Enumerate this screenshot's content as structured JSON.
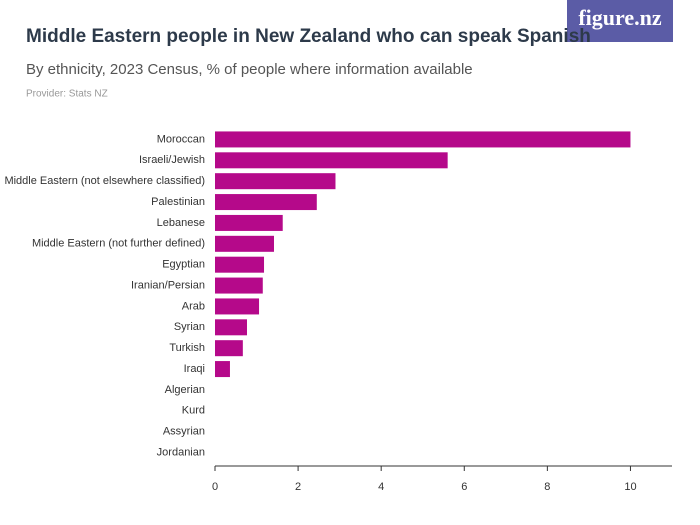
{
  "logo": "figure.nz",
  "chart_data": {
    "type": "barh",
    "title": "Middle Eastern people in New Zealand who can speak Spanish",
    "subtitle": "By ethnicity, 2023 Census, % of people where information available",
    "provider": "Provider: Stats NZ",
    "categories": [
      "Moroccan",
      "Israeli/Jewish",
      "Middle Eastern (not elsewhere classified)",
      "Palestinian",
      "Lebanese",
      "Middle Eastern (not further defined)",
      "Egyptian",
      "Iranian/Persian",
      "Arab",
      "Syrian",
      "Turkish",
      "Iraqi",
      "Algerian",
      "Kurd",
      "Assyrian",
      "Jordanian"
    ],
    "values": [
      10.0,
      5.6,
      2.9,
      2.45,
      1.63,
      1.42,
      1.18,
      1.15,
      1.06,
      0.77,
      0.67,
      0.36,
      0,
      0,
      0,
      0
    ],
    "color": "#b5098a",
    "xlim": [
      0,
      11
    ],
    "xticks": [
      0,
      2,
      4,
      6,
      8,
      10
    ],
    "grid": false
  }
}
